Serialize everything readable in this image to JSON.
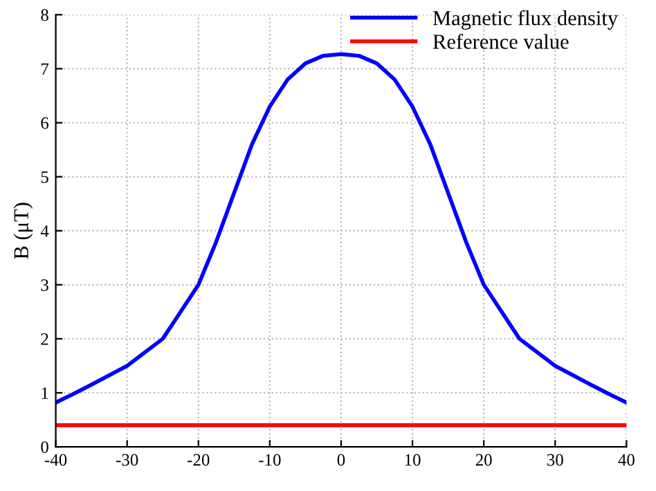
{
  "chart_data": {
    "type": "line",
    "ylabel": "B (μT)",
    "x": [
      -40,
      -37.5,
      -35,
      -30,
      -25,
      -20,
      -17.5,
      -15,
      -12.5,
      -10,
      -7.5,
      -5,
      -2.5,
      0,
      2.5,
      5,
      7.5,
      10,
      12.5,
      15,
      17.5,
      20,
      25,
      30,
      35,
      37.5,
      40
    ],
    "series": [
      {
        "name": "Magnetic flux density",
        "color": "#0000ff",
        "values": [
          0.82,
          0.98,
          1.15,
          1.5,
          2.0,
          3.0,
          3.8,
          4.7,
          5.6,
          6.3,
          6.8,
          7.1,
          7.24,
          7.27,
          7.24,
          7.1,
          6.8,
          6.3,
          5.6,
          4.7,
          3.8,
          3.0,
          2.0,
          1.5,
          1.15,
          0.98,
          0.82
        ]
      },
      {
        "name": "Reference value",
        "color": "#ff0000",
        "values": [
          0.4,
          0.4,
          0.4,
          0.4,
          0.4,
          0.4,
          0.4,
          0.4,
          0.4,
          0.4,
          0.4,
          0.4,
          0.4,
          0.4,
          0.4,
          0.4,
          0.4,
          0.4,
          0.4,
          0.4,
          0.4,
          0.4,
          0.4,
          0.4,
          0.4,
          0.4,
          0.4
        ]
      }
    ],
    "xlim": [
      -40,
      40
    ],
    "xticks": [
      -40,
      -30,
      -20,
      -10,
      0,
      10,
      20,
      30,
      40
    ],
    "ylim": [
      0,
      8
    ],
    "yticks": [
      0,
      1,
      2,
      3,
      4,
      5,
      6,
      7,
      8
    ],
    "grid": true,
    "legend": "top right",
    "marker": "none",
    "line_style": "solid"
  }
}
